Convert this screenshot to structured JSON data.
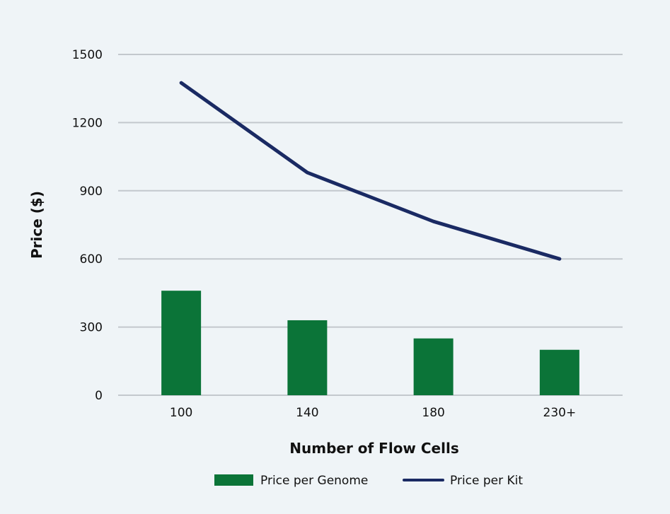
{
  "chart_data": {
    "type": "bar",
    "title": "",
    "xlabel": "Number of Flow Cells",
    "ylabel": "Price ($)",
    "categories": [
      "100",
      "140",
      "180",
      "230+"
    ],
    "ylim": [
      0,
      1500
    ],
    "yticks": [
      "0",
      "300",
      "600",
      "900",
      "1200",
      "1500"
    ],
    "grid": true,
    "legend_position": "bottom",
    "series": [
      {
        "name": "Price per Genome",
        "type": "bar",
        "color": "#0b7438",
        "values": [
          460,
          330,
          250,
          200
        ]
      },
      {
        "name": "Price per Kit",
        "type": "line",
        "color": "#1a2a63",
        "values": [
          1375,
          980,
          765,
          600
        ]
      }
    ]
  }
}
